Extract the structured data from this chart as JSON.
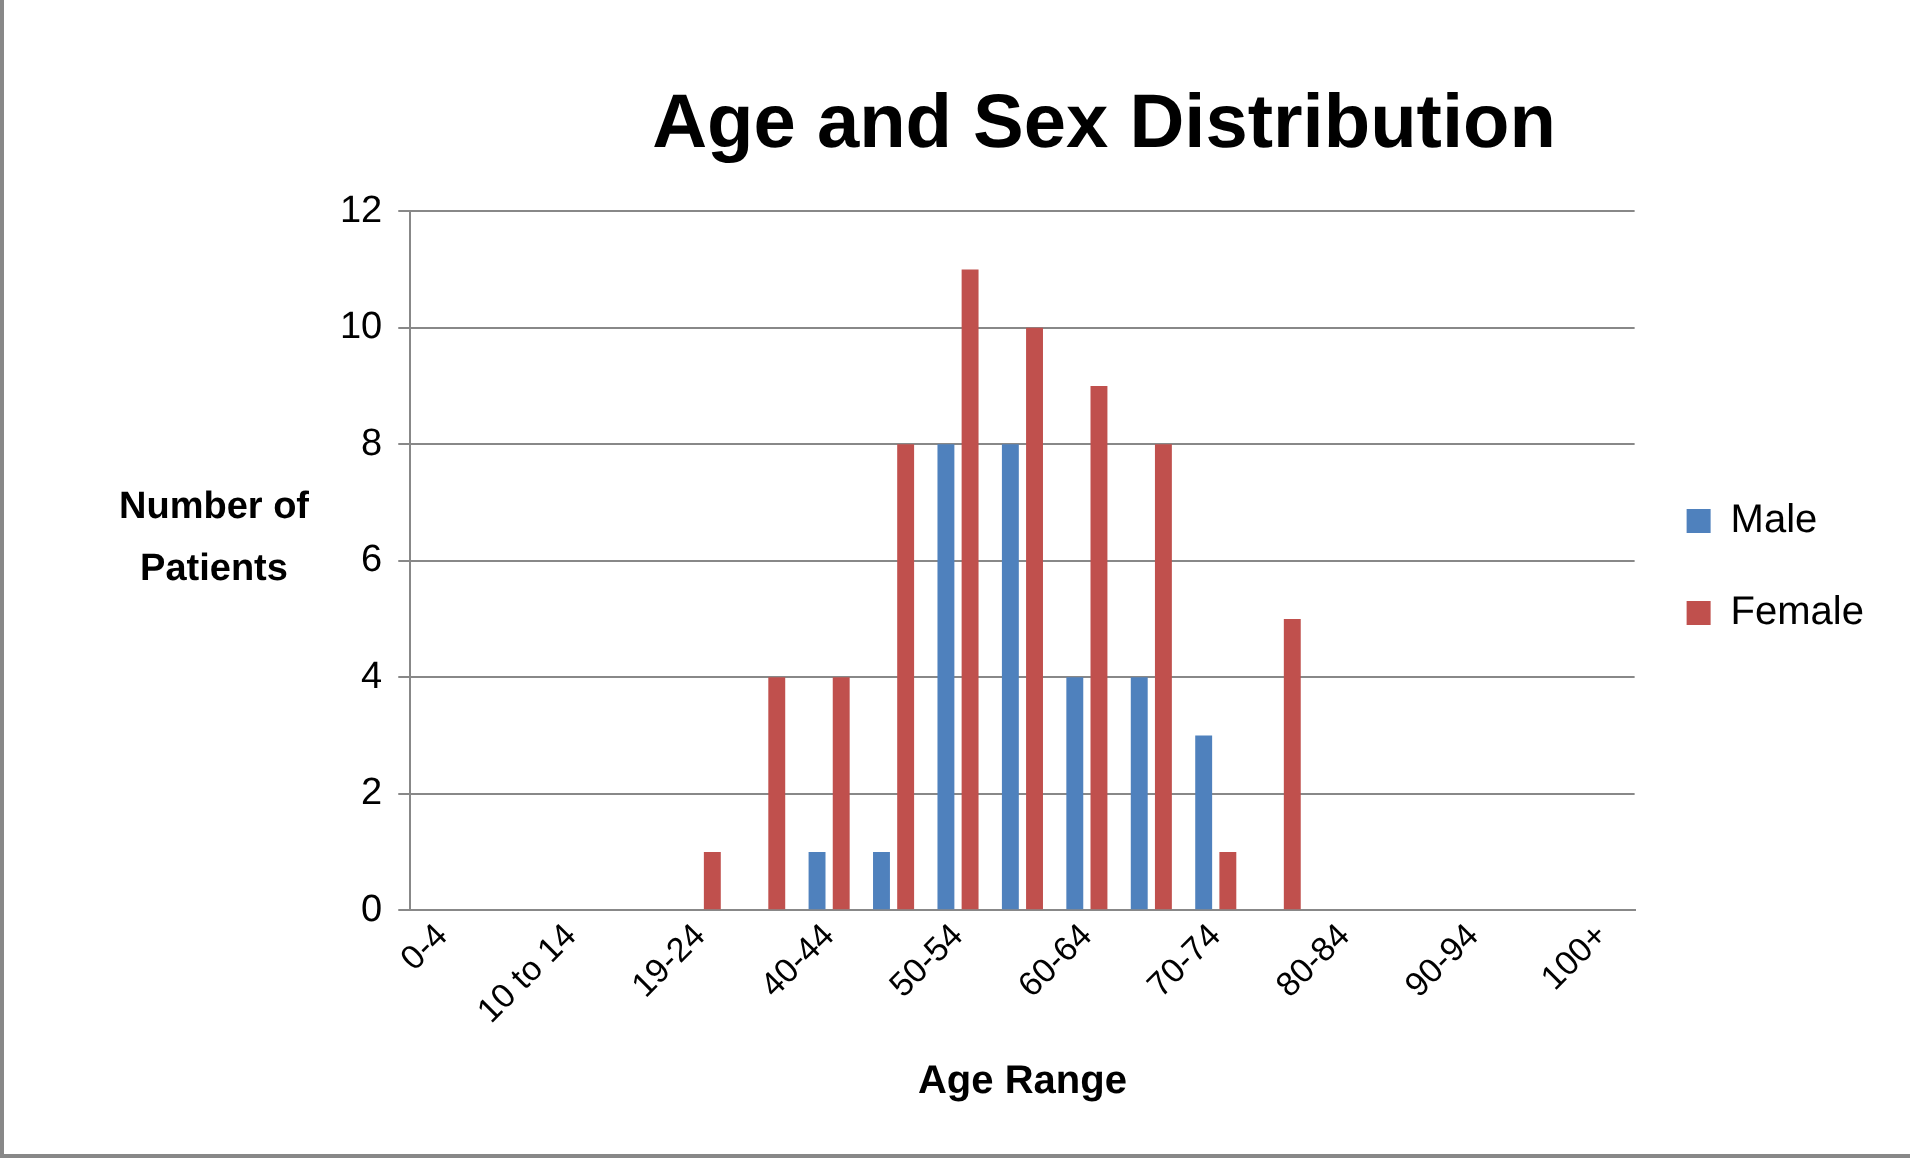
{
  "chart_data": {
    "type": "bar",
    "title": "Age and Sex Distribution",
    "xlabel": "Age Range",
    "ylabel": "Number of Patients",
    "categories": [
      "0-4",
      null,
      "10 to 14",
      null,
      "19-24",
      null,
      "40-44",
      null,
      "50-54",
      null,
      "60-64",
      null,
      "70-74",
      null,
      "80-84",
      null,
      "90-94",
      null,
      "100+"
    ],
    "series": [
      {
        "name": "Male",
        "color": "#4f81bd",
        "values": [
          0,
          0,
          0,
          0,
          0,
          0,
          1,
          1,
          8,
          8,
          4,
          4,
          3,
          0,
          0,
          0,
          0,
          0,
          0
        ]
      },
      {
        "name": "Female",
        "color": "#c0504d",
        "values": [
          0,
          0,
          0,
          0,
          1,
          4,
          4,
          8,
          11,
          10,
          9,
          8,
          1,
          5,
          0,
          0,
          0,
          0,
          0
        ]
      }
    ],
    "ylim": [
      0,
      12
    ],
    "yticks": [
      0,
      2,
      4,
      6,
      8,
      10,
      12
    ],
    "grid": "y",
    "legend": "right"
  }
}
